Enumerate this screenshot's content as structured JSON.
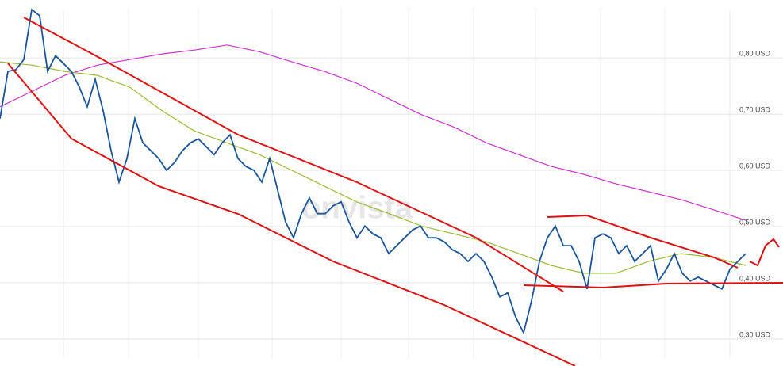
{
  "chart_data": {
    "type": "line",
    "watermark": "onvista",
    "ylim": [
      0.252,
      0.903
    ],
    "yticks": [
      {
        "value": 0.3,
        "label": "0,30 USD"
      },
      {
        "value": 0.4,
        "label": "0,40 USD"
      },
      {
        "value": 0.5,
        "label": "0,50 USD"
      },
      {
        "value": 0.6,
        "label": "0,60 USD"
      },
      {
        "value": 0.7,
        "label": "0,70 USD"
      },
      {
        "value": 0.8,
        "label": "0,80 USD"
      }
    ],
    "grid": true,
    "series": [
      {
        "color": "#cc33cc",
        "values": [
          0.713,
          0.741,
          0.769,
          0.787,
          0.797,
          0.807,
          0.814,
          0.823,
          0.811,
          0.793,
          0.776,
          0.755,
          0.727,
          0.699,
          0.677,
          0.649,
          0.628,
          0.607,
          0.593,
          0.576,
          0.562,
          0.548,
          0.53,
          0.511
        ]
      },
      {
        "color": "#99bb33",
        "values": [
          0.793,
          0.787,
          0.776,
          0.769,
          0.748,
          0.706,
          0.67,
          0.649,
          0.628,
          0.6,
          0.572,
          0.544,
          0.523,
          0.501,
          0.487,
          0.473,
          0.452,
          0.431,
          0.417,
          0.417,
          0.438,
          0.452,
          0.445,
          0.431
        ]
      },
      {
        "color": "#1a5599",
        "values": [
          0.692,
          0.776,
          0.779,
          0.797,
          0.886,
          0.875,
          0.776,
          0.804,
          0.79,
          0.776,
          0.748,
          0.713,
          0.762,
          0.706,
          0.635,
          0.579,
          0.621,
          0.692,
          0.649,
          0.635,
          0.621,
          0.6,
          0.614,
          0.635,
          0.649,
          0.656,
          0.642,
          0.628,
          0.649,
          0.663,
          0.621,
          0.607,
          0.6,
          0.579,
          0.621,
          0.565,
          0.508,
          0.48,
          0.523,
          0.551,
          0.523,
          0.523,
          0.537,
          0.544,
          0.508,
          0.48,
          0.501,
          0.487,
          0.48,
          0.452,
          0.466,
          0.48,
          0.494,
          0.501,
          0.48,
          0.48,
          0.473,
          0.459,
          0.452,
          0.438,
          0.452,
          0.438,
          0.41,
          0.375,
          0.382,
          0.339,
          0.311,
          0.368,
          0.438,
          0.48,
          0.501,
          0.466,
          0.466,
          0.438,
          0.389,
          0.48,
          0.487,
          0.48,
          0.452,
          0.466,
          0.438,
          0.452,
          0.466,
          0.403,
          0.424,
          0.452,
          0.417,
          0.403,
          0.41,
          0.403,
          0.396,
          0.389,
          0.424,
          0.438,
          0.452
        ]
      }
    ]
  }
}
